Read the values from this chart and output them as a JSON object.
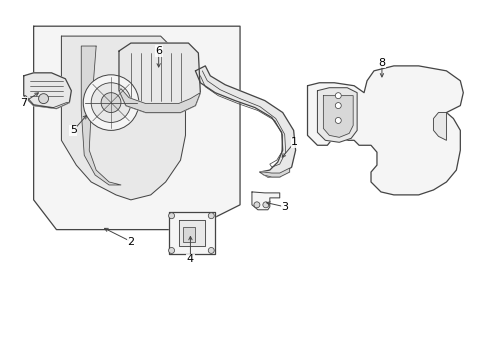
{
  "background_color": "#ffffff",
  "line_color": "#444444",
  "fill_light": "#f5f5f5",
  "fill_mid": "#e8e8e8",
  "fill_dark": "#d8d8d8",
  "label_fontsize": 8,
  "line_width": 0.9,
  "fig_width": 4.9,
  "fig_height": 3.6,
  "dpi": 100
}
